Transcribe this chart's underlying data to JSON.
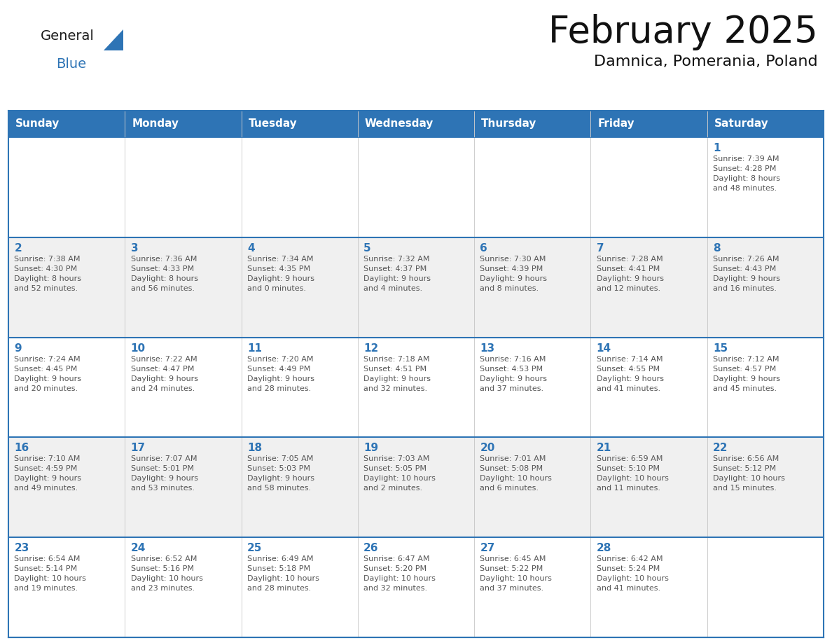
{
  "title": "February 2025",
  "subtitle": "Damnica, Pomerania, Poland",
  "header_bg": "#2E74B5",
  "header_text_color": "#FFFFFF",
  "border_color": "#2E74B5",
  "text_color": "#555555",
  "day_number_color": "#2E74B5",
  "day_headers": [
    "Sunday",
    "Monday",
    "Tuesday",
    "Wednesday",
    "Thursday",
    "Friday",
    "Saturday"
  ],
  "weeks": [
    [
      {
        "day": "",
        "info": ""
      },
      {
        "day": "",
        "info": ""
      },
      {
        "day": "",
        "info": ""
      },
      {
        "day": "",
        "info": ""
      },
      {
        "day": "",
        "info": ""
      },
      {
        "day": "",
        "info": ""
      },
      {
        "day": "1",
        "info": "Sunrise: 7:39 AM\nSunset: 4:28 PM\nDaylight: 8 hours\nand 48 minutes."
      }
    ],
    [
      {
        "day": "2",
        "info": "Sunrise: 7:38 AM\nSunset: 4:30 PM\nDaylight: 8 hours\nand 52 minutes."
      },
      {
        "day": "3",
        "info": "Sunrise: 7:36 AM\nSunset: 4:33 PM\nDaylight: 8 hours\nand 56 minutes."
      },
      {
        "day": "4",
        "info": "Sunrise: 7:34 AM\nSunset: 4:35 PM\nDaylight: 9 hours\nand 0 minutes."
      },
      {
        "day": "5",
        "info": "Sunrise: 7:32 AM\nSunset: 4:37 PM\nDaylight: 9 hours\nand 4 minutes."
      },
      {
        "day": "6",
        "info": "Sunrise: 7:30 AM\nSunset: 4:39 PM\nDaylight: 9 hours\nand 8 minutes."
      },
      {
        "day": "7",
        "info": "Sunrise: 7:28 AM\nSunset: 4:41 PM\nDaylight: 9 hours\nand 12 minutes."
      },
      {
        "day": "8",
        "info": "Sunrise: 7:26 AM\nSunset: 4:43 PM\nDaylight: 9 hours\nand 16 minutes."
      }
    ],
    [
      {
        "day": "9",
        "info": "Sunrise: 7:24 AM\nSunset: 4:45 PM\nDaylight: 9 hours\nand 20 minutes."
      },
      {
        "day": "10",
        "info": "Sunrise: 7:22 AM\nSunset: 4:47 PM\nDaylight: 9 hours\nand 24 minutes."
      },
      {
        "day": "11",
        "info": "Sunrise: 7:20 AM\nSunset: 4:49 PM\nDaylight: 9 hours\nand 28 minutes."
      },
      {
        "day": "12",
        "info": "Sunrise: 7:18 AM\nSunset: 4:51 PM\nDaylight: 9 hours\nand 32 minutes."
      },
      {
        "day": "13",
        "info": "Sunrise: 7:16 AM\nSunset: 4:53 PM\nDaylight: 9 hours\nand 37 minutes."
      },
      {
        "day": "14",
        "info": "Sunrise: 7:14 AM\nSunset: 4:55 PM\nDaylight: 9 hours\nand 41 minutes."
      },
      {
        "day": "15",
        "info": "Sunrise: 7:12 AM\nSunset: 4:57 PM\nDaylight: 9 hours\nand 45 minutes."
      }
    ],
    [
      {
        "day": "16",
        "info": "Sunrise: 7:10 AM\nSunset: 4:59 PM\nDaylight: 9 hours\nand 49 minutes."
      },
      {
        "day": "17",
        "info": "Sunrise: 7:07 AM\nSunset: 5:01 PM\nDaylight: 9 hours\nand 53 minutes."
      },
      {
        "day": "18",
        "info": "Sunrise: 7:05 AM\nSunset: 5:03 PM\nDaylight: 9 hours\nand 58 minutes."
      },
      {
        "day": "19",
        "info": "Sunrise: 7:03 AM\nSunset: 5:05 PM\nDaylight: 10 hours\nand 2 minutes."
      },
      {
        "day": "20",
        "info": "Sunrise: 7:01 AM\nSunset: 5:08 PM\nDaylight: 10 hours\nand 6 minutes."
      },
      {
        "day": "21",
        "info": "Sunrise: 6:59 AM\nSunset: 5:10 PM\nDaylight: 10 hours\nand 11 minutes."
      },
      {
        "day": "22",
        "info": "Sunrise: 6:56 AM\nSunset: 5:12 PM\nDaylight: 10 hours\nand 15 minutes."
      }
    ],
    [
      {
        "day": "23",
        "info": "Sunrise: 6:54 AM\nSunset: 5:14 PM\nDaylight: 10 hours\nand 19 minutes."
      },
      {
        "day": "24",
        "info": "Sunrise: 6:52 AM\nSunset: 5:16 PM\nDaylight: 10 hours\nand 23 minutes."
      },
      {
        "day": "25",
        "info": "Sunrise: 6:49 AM\nSunset: 5:18 PM\nDaylight: 10 hours\nand 28 minutes."
      },
      {
        "day": "26",
        "info": "Sunrise: 6:47 AM\nSunset: 5:20 PM\nDaylight: 10 hours\nand 32 minutes."
      },
      {
        "day": "27",
        "info": "Sunrise: 6:45 AM\nSunset: 5:22 PM\nDaylight: 10 hours\nand 37 minutes."
      },
      {
        "day": "28",
        "info": "Sunrise: 6:42 AM\nSunset: 5:24 PM\nDaylight: 10 hours\nand 41 minutes."
      },
      {
        "day": "",
        "info": ""
      }
    ]
  ],
  "logo_text_general": "General",
  "logo_text_blue": "Blue",
  "logo_color_general": "#1a1a1a",
  "logo_color_blue": "#2E74B5",
  "logo_triangle_color": "#2E74B5",
  "cell_bg_even": "#FFFFFF",
  "cell_bg_odd": "#F0F0F0",
  "title_fontsize": 38,
  "subtitle_fontsize": 16,
  "header_fontsize": 11,
  "day_num_fontsize": 11,
  "info_fontsize": 8
}
